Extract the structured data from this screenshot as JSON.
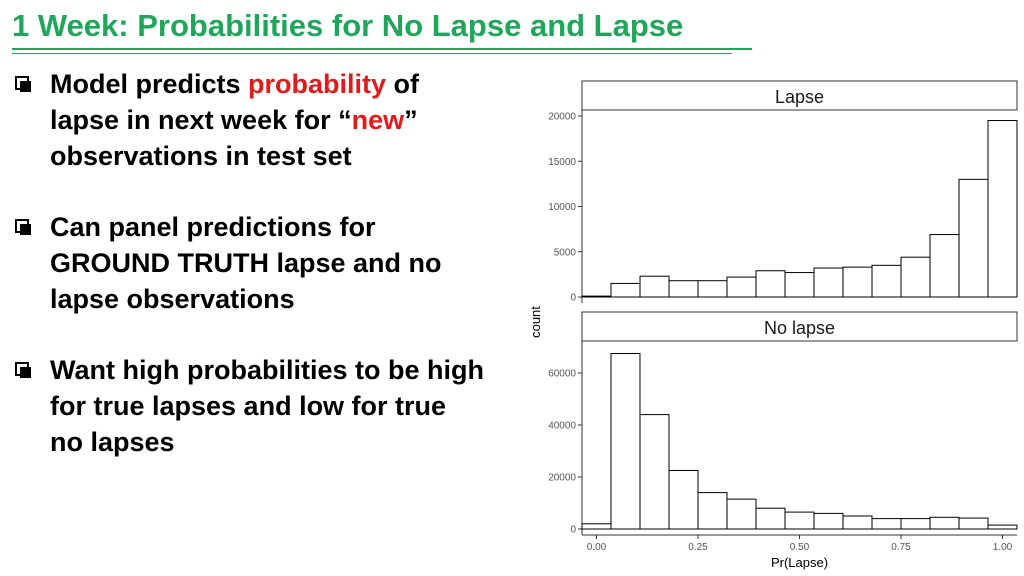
{
  "slide": {
    "title": "1 Week: Probabilities for No Lapse and Lapse",
    "bullets": [
      {
        "pre": "Model predicts ",
        "hl1": "probability",
        "mid": " of lapse in next week for “",
        "hl2": "new",
        "post": "” observations in test set"
      },
      {
        "text": "Can panel predictions for GROUND TRUTH lapse and no lapse observations"
      },
      {
        "text": "Want high probabilities to be high for true lapses and low for true no lapses"
      }
    ]
  },
  "colors": {
    "title": "#1fa65a",
    "highlight": "#e11b1b",
    "bar_fill": "#ffffff",
    "bar_stroke": "#000000"
  },
  "chart_data": {
    "type": "bar",
    "xlabel": "Pr(Lapse)",
    "ylabel": "count",
    "x_ticks": [
      "0.00",
      "0.25",
      "0.50",
      "0.75",
      "1.00"
    ],
    "x_tick_values": [
      0.0,
      0.25,
      0.5,
      0.75,
      1.0
    ],
    "bin_width": 0.0714,
    "bin_centers": [
      0.0,
      0.0714,
      0.1429,
      0.2143,
      0.2857,
      0.3571,
      0.4286,
      0.5,
      0.5714,
      0.6429,
      0.7143,
      0.7857,
      0.8571,
      0.9286,
      1.0
    ],
    "xlim": [
      -0.0357,
      1.0357
    ],
    "grid": false,
    "panels": [
      {
        "name": "Lapse",
        "ylim": [
          0,
          20000
        ],
        "y_ticks": [
          0,
          5000,
          10000,
          15000,
          20000
        ],
        "values": [
          100,
          1500,
          2300,
          1800,
          1800,
          2200,
          2900,
          2700,
          3200,
          3300,
          3500,
          4400,
          6900,
          13000,
          19500
        ]
      },
      {
        "name": "No lapse",
        "ylim": [
          0,
          70000
        ],
        "y_ticks": [
          0,
          20000,
          40000,
          60000
        ],
        "values": [
          2000,
          67500,
          44000,
          22500,
          14000,
          11500,
          8000,
          6500,
          6000,
          5000,
          4000,
          4000,
          4500,
          4200,
          1500
        ]
      }
    ]
  }
}
